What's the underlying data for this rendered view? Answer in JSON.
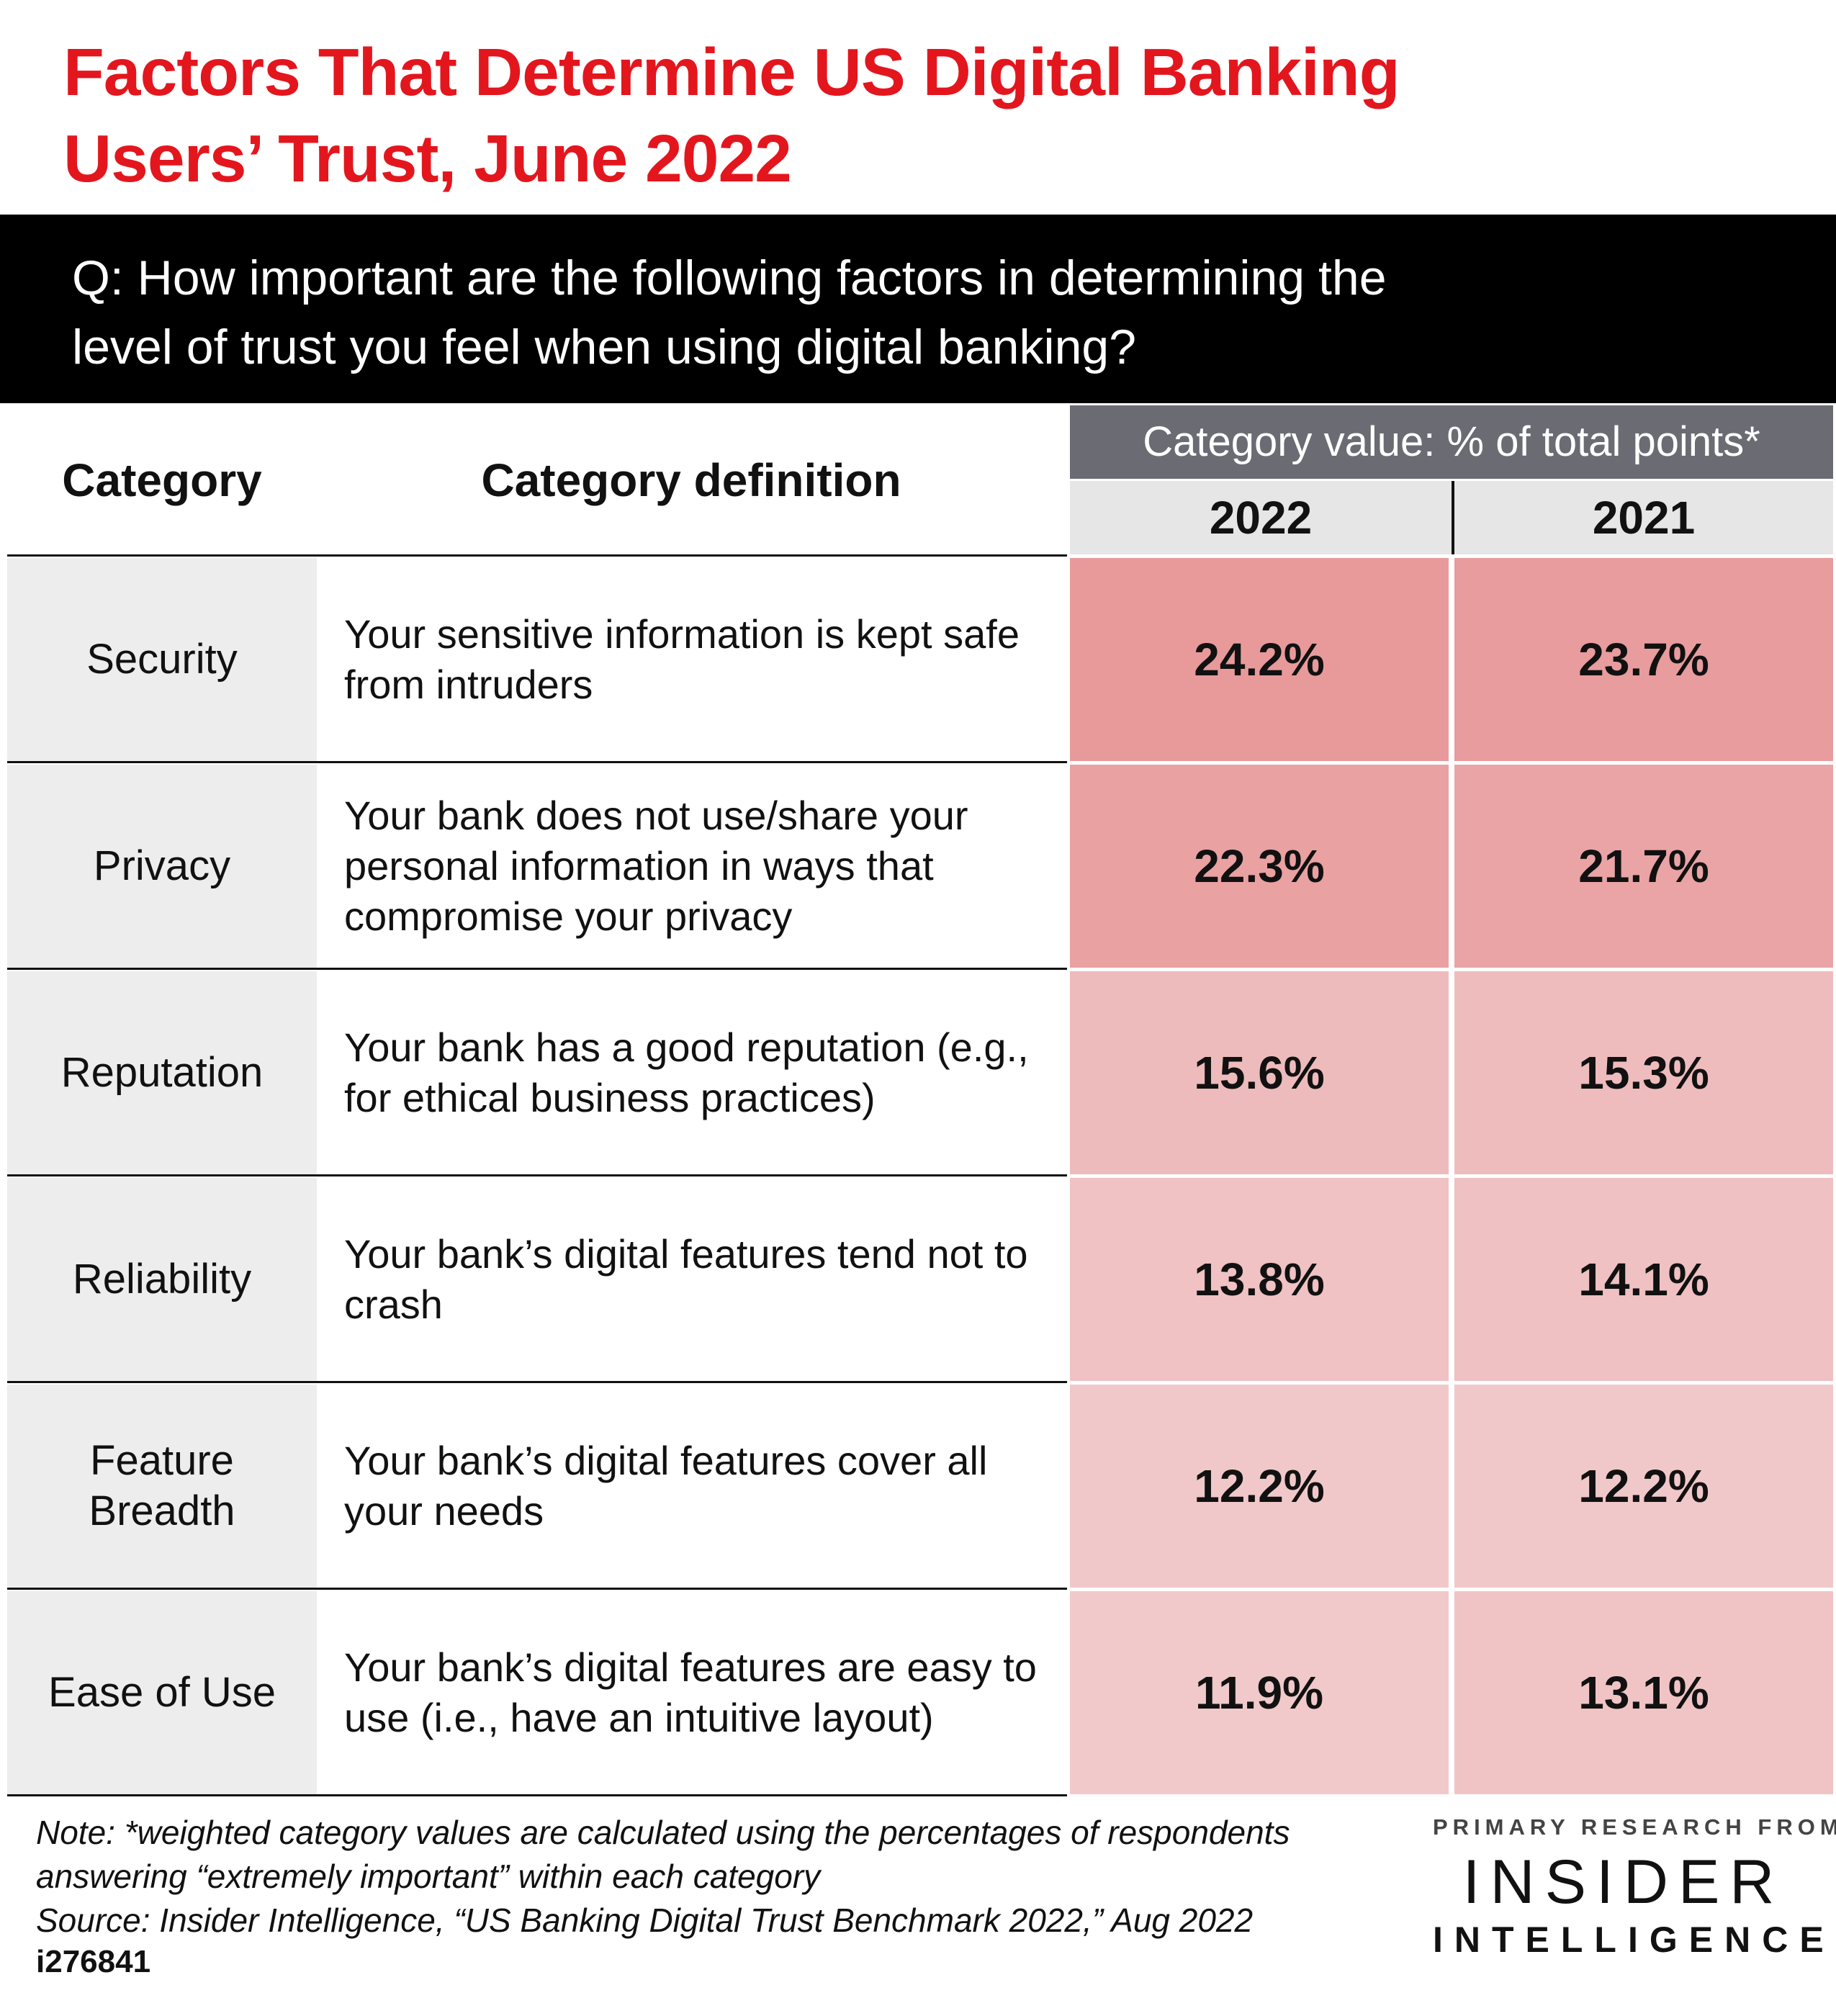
{
  "title": {
    "line1": "Factors That Determine US Digital Banking",
    "line2": "Users’ Trust, June 2022"
  },
  "question": {
    "line1": "Q: How important are the following factors in determining the",
    "line2": "level of trust you feel when using digital banking?"
  },
  "table": {
    "header_category": "Category",
    "header_definition": "Category definition",
    "header_value": "Category value: % of total points*",
    "years": [
      "2022",
      "2021"
    ]
  },
  "chart_data": {
    "type": "table",
    "columns": [
      "Category",
      "Category definition",
      "2022",
      "2021"
    ],
    "rows": [
      {
        "category": "Security",
        "definition": "Your sensitive information is kept safe from intruders",
        "values": [
          "24.2%",
          "23.7%"
        ],
        "num": [
          24.2,
          23.7
        ]
      },
      {
        "category": "Privacy",
        "definition": "Your bank does not use/share your personal information in ways that compromise your privacy",
        "values": [
          "22.3%",
          "21.7%"
        ],
        "num": [
          22.3,
          21.7
        ]
      },
      {
        "category": "Reputation",
        "definition": "Your bank has a good reputation (e.g., for ethical business practices)",
        "values": [
          "15.6%",
          "15.3%"
        ],
        "num": [
          15.6,
          15.3
        ]
      },
      {
        "category": "Reliability",
        "definition": "Your bank’s digital features tend not to crash",
        "values": [
          "13.8%",
          "14.1%"
        ],
        "num": [
          13.8,
          14.1
        ]
      },
      {
        "category": "Feature Breadth",
        "definition": "Your bank’s digital features cover all your needs",
        "values": [
          "12.2%",
          "12.2%"
        ],
        "num": [
          12.2,
          12.2
        ]
      },
      {
        "category": "Ease of Use",
        "definition": "Your bank’s digital features are easy to use (i.e., have an intuitive layout)",
        "values": [
          "11.9%",
          "13.1%"
        ],
        "num": [
          11.9,
          13.1
        ]
      }
    ],
    "heat_colors": {
      "high": "#e89a9b",
      "low": "#f1c9ca"
    }
  },
  "footnote": {
    "note_line1": "Note: *weighted category values are calculated using the percentages of respondents",
    "note_line2": "answering “extremely important” within each category",
    "source": "Source: Insider Intelligence, “US Banking Digital Trust Benchmark 2022,” Aug 2022",
    "id": "i276841"
  },
  "brand": {
    "top": "PRIMARY RESEARCH FROM",
    "main": "INSIDER",
    "sub": "INTELLIGENCE"
  },
  "colors": {
    "title_red": "#e3161e",
    "band_dark": "#000000",
    "value_header_grey": "#6b6c73",
    "category_cell_grey": "#ededed"
  }
}
